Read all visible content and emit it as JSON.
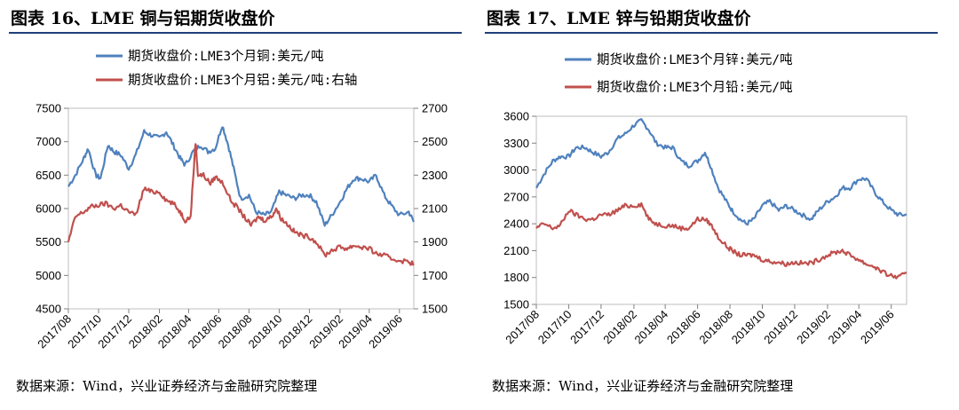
{
  "sources": {
    "left": "数据来源：Wind，兴业证券经济与金融研究院整理",
    "right": "数据来源：Wind，兴业证券经济与金融研究院整理"
  },
  "chart_data": [
    {
      "type": "line",
      "title": "图表 16、LME 铜与铝期货收盘价",
      "x_ticks": [
        "2017/08",
        "2017/10",
        "2017/12",
        "2018/02",
        "2018/04",
        "2018/06",
        "2018/08",
        "2018/10",
        "2018/12",
        "2019/02",
        "2019/04",
        "2019/06"
      ],
      "x_range": [
        "2017-08-01",
        "2019-06-30"
      ],
      "y_ticks_left": [
        4500,
        5000,
        5500,
        6000,
        6500,
        7000,
        7500
      ],
      "y_ticks_right": [
        1500,
        1700,
        1900,
        2100,
        2300,
        2500,
        2700
      ],
      "ylim_left": [
        4500,
        7500
      ],
      "ylim_right": [
        1500,
        2700
      ],
      "legend_placement": "top",
      "grid": false,
      "series": [
        {
          "name": "期货收盘价:LME3个月铜:美元/吨",
          "axis": "left",
          "color": "#4f81bd",
          "points": [
            [
              "2017-08-01",
              6330
            ],
            [
              "2017-08-15",
              6500
            ],
            [
              "2017-09-01",
              6750
            ],
            [
              "2017-09-10",
              6900
            ],
            [
              "2017-09-25",
              6500
            ],
            [
              "2017-10-05",
              6450
            ],
            [
              "2017-10-20",
              6950
            ],
            [
              "2017-11-01",
              6850
            ],
            [
              "2017-11-15",
              6800
            ],
            [
              "2017-12-01",
              6600
            ],
            [
              "2017-12-15",
              6800
            ],
            [
              "2018-01-01",
              7150
            ],
            [
              "2018-01-15",
              7100
            ],
            [
              "2018-02-01",
              7050
            ],
            [
              "2018-02-15",
              7150
            ],
            [
              "2018-03-01",
              6950
            ],
            [
              "2018-03-15",
              6750
            ],
            [
              "2018-03-25",
              6650
            ],
            [
              "2018-04-10",
              6850
            ],
            [
              "2018-04-25",
              6950
            ],
            [
              "2018-05-10",
              6850
            ],
            [
              "2018-05-25",
              6900
            ],
            [
              "2018-06-08",
              7250
            ],
            [
              "2018-06-20",
              6950
            ],
            [
              "2018-07-01",
              6600
            ],
            [
              "2018-07-15",
              6150
            ],
            [
              "2018-08-01",
              6200
            ],
            [
              "2018-08-15",
              5950
            ],
            [
              "2018-09-01",
              5900
            ],
            [
              "2018-09-15",
              5950
            ],
            [
              "2018-10-01",
              6250
            ],
            [
              "2018-10-15",
              6200
            ],
            [
              "2018-11-01",
              6150
            ],
            [
              "2018-11-15",
              6200
            ],
            [
              "2018-12-01",
              6200
            ],
            [
              "2018-12-15",
              6100
            ],
            [
              "2019-01-01",
              5750
            ],
            [
              "2019-01-15",
              5900
            ],
            [
              "2019-02-01",
              6100
            ],
            [
              "2019-02-15",
              6300
            ],
            [
              "2019-03-01",
              6450
            ],
            [
              "2019-03-15",
              6450
            ],
            [
              "2019-04-01",
              6400
            ],
            [
              "2019-04-15",
              6500
            ],
            [
              "2019-05-01",
              6200
            ],
            [
              "2019-05-15",
              6050
            ],
            [
              "2019-06-01",
              5900
            ],
            [
              "2019-06-20",
              5950
            ],
            [
              "2019-06-30",
              5800
            ]
          ]
        },
        {
          "name": "期货收盘价:LME3个月铝:美元/吨:右轴",
          "axis": "right",
          "color": "#c0504d",
          "points": [
            [
              "2017-08-01",
              1900
            ],
            [
              "2017-08-15",
              2050
            ],
            [
              "2017-09-01",
              2080
            ],
            [
              "2017-09-15",
              2110
            ],
            [
              "2017-10-01",
              2120
            ],
            [
              "2017-10-15",
              2130
            ],
            [
              "2017-11-01",
              2100
            ],
            [
              "2017-11-15",
              2120
            ],
            [
              "2017-12-01",
              2080
            ],
            [
              "2017-12-15",
              2060
            ],
            [
              "2018-01-01",
              2220
            ],
            [
              "2018-01-15",
              2200
            ],
            [
              "2018-02-01",
              2200
            ],
            [
              "2018-02-15",
              2150
            ],
            [
              "2018-03-01",
              2130
            ],
            [
              "2018-03-15",
              2080
            ],
            [
              "2018-03-25",
              2030
            ],
            [
              "2018-04-05",
              2050
            ],
            [
              "2018-04-15",
              2500
            ],
            [
              "2018-04-20",
              2300
            ],
            [
              "2018-05-01",
              2300
            ],
            [
              "2018-05-15",
              2250
            ],
            [
              "2018-05-25",
              2290
            ],
            [
              "2018-06-10",
              2250
            ],
            [
              "2018-06-25",
              2150
            ],
            [
              "2018-07-10",
              2100
            ],
            [
              "2018-07-25",
              2040
            ],
            [
              "2018-08-05",
              2000
            ],
            [
              "2018-08-20",
              2050
            ],
            [
              "2018-09-01",
              2030
            ],
            [
              "2018-09-15",
              2050
            ],
            [
              "2018-09-25",
              2100
            ],
            [
              "2018-10-05",
              2040
            ],
            [
              "2018-10-20",
              2000
            ],
            [
              "2018-11-01",
              1960
            ],
            [
              "2018-11-15",
              1940
            ],
            [
              "2018-12-01",
              1930
            ],
            [
              "2018-12-15",
              1900
            ],
            [
              "2019-01-01",
              1820
            ],
            [
              "2019-01-15",
              1850
            ],
            [
              "2019-02-01",
              1870
            ],
            [
              "2019-02-15",
              1860
            ],
            [
              "2019-03-01",
              1880
            ],
            [
              "2019-03-15",
              1870
            ],
            [
              "2019-04-01",
              1860
            ],
            [
              "2019-04-15",
              1830
            ],
            [
              "2019-05-01",
              1820
            ],
            [
              "2019-05-15",
              1800
            ],
            [
              "2019-06-01",
              1790
            ],
            [
              "2019-06-20",
              1780
            ],
            [
              "2019-06-30",
              1770
            ]
          ]
        }
      ]
    },
    {
      "type": "line",
      "title": "图表 17、LME 锌与铅期货收盘价",
      "x_ticks": [
        "2017/08",
        "2017/10",
        "2017/12",
        "2018/02",
        "2018/04",
        "2018/06",
        "2018/08",
        "2018/10",
        "2018/12",
        "2019/02",
        "2019/04",
        "2019/06"
      ],
      "x_range": [
        "2017-08-01",
        "2019-06-30"
      ],
      "y_ticks_left": [
        1500,
        1800,
        2100,
        2400,
        2700,
        3000,
        3300,
        3600
      ],
      "ylim_left": [
        1500,
        3600
      ],
      "legend_placement": "top",
      "grid": false,
      "series": [
        {
          "name": "期货收盘价:LME3个月锌:美元/吨",
          "axis": "left",
          "color": "#4f81bd",
          "points": [
            [
              "2017-08-01",
              2800
            ],
            [
              "2017-08-15",
              2950
            ],
            [
              "2017-09-01",
              3100
            ],
            [
              "2017-09-15",
              3150
            ],
            [
              "2017-10-01",
              3150
            ],
            [
              "2017-10-15",
              3250
            ],
            [
              "2017-11-01",
              3250
            ],
            [
              "2017-11-15",
              3200
            ],
            [
              "2017-12-01",
              3150
            ],
            [
              "2017-12-15",
              3200
            ],
            [
              "2018-01-01",
              3350
            ],
            [
              "2018-01-15",
              3400
            ],
            [
              "2018-02-01",
              3500
            ],
            [
              "2018-02-15",
              3550
            ],
            [
              "2018-03-01",
              3450
            ],
            [
              "2018-03-15",
              3300
            ],
            [
              "2018-04-01",
              3250
            ],
            [
              "2018-04-15",
              3250
            ],
            [
              "2018-05-01",
              3100
            ],
            [
              "2018-05-15",
              3050
            ],
            [
              "2018-06-01",
              3100
            ],
            [
              "2018-06-15",
              3200
            ],
            [
              "2018-06-25",
              3050
            ],
            [
              "2018-07-10",
              2800
            ],
            [
              "2018-07-25",
              2650
            ],
            [
              "2018-08-05",
              2550
            ],
            [
              "2018-08-20",
              2450
            ],
            [
              "2018-09-01",
              2400
            ],
            [
              "2018-09-15",
              2450
            ],
            [
              "2018-10-01",
              2600
            ],
            [
              "2018-10-15",
              2650
            ],
            [
              "2018-11-01",
              2550
            ],
            [
              "2018-11-15",
              2600
            ],
            [
              "2018-12-01",
              2550
            ],
            [
              "2018-12-15",
              2500
            ],
            [
              "2019-01-01",
              2450
            ],
            [
              "2019-01-15",
              2550
            ],
            [
              "2019-02-01",
              2650
            ],
            [
              "2019-02-15",
              2700
            ],
            [
              "2019-03-01",
              2800
            ],
            [
              "2019-03-15",
              2800
            ],
            [
              "2019-04-01",
              2900
            ],
            [
              "2019-04-15",
              2900
            ],
            [
              "2019-05-01",
              2750
            ],
            [
              "2019-05-15",
              2650
            ],
            [
              "2019-06-01",
              2550
            ],
            [
              "2019-06-15",
              2500
            ],
            [
              "2019-06-30",
              2500
            ]
          ]
        },
        {
          "name": "期货收盘价:LME3个月铅:美元/吨",
          "axis": "left",
          "color": "#c0504d",
          "points": [
            [
              "2017-08-01",
              2350
            ],
            [
              "2017-08-15",
              2400
            ],
            [
              "2017-09-01",
              2350
            ],
            [
              "2017-09-15",
              2380
            ],
            [
              "2017-10-01",
              2550
            ],
            [
              "2017-10-15",
              2500
            ],
            [
              "2017-11-01",
              2450
            ],
            [
              "2017-11-15",
              2450
            ],
            [
              "2017-12-01",
              2500
            ],
            [
              "2017-12-15",
              2500
            ],
            [
              "2018-01-01",
              2550
            ],
            [
              "2018-01-15",
              2600
            ],
            [
              "2018-02-01",
              2600
            ],
            [
              "2018-02-15",
              2620
            ],
            [
              "2018-03-01",
              2450
            ],
            [
              "2018-03-15",
              2400
            ],
            [
              "2018-04-01",
              2380
            ],
            [
              "2018-04-15",
              2380
            ],
            [
              "2018-05-01",
              2350
            ],
            [
              "2018-05-15",
              2350
            ],
            [
              "2018-06-01",
              2450
            ],
            [
              "2018-06-15",
              2450
            ],
            [
              "2018-06-25",
              2400
            ],
            [
              "2018-07-10",
              2250
            ],
            [
              "2018-07-25",
              2150
            ],
            [
              "2018-08-05",
              2100
            ],
            [
              "2018-08-20",
              2050
            ],
            [
              "2018-09-01",
              2050
            ],
            [
              "2018-09-15",
              2050
            ],
            [
              "2018-10-01",
              2000
            ],
            [
              "2018-10-15",
              1980
            ],
            [
              "2018-11-01",
              1970
            ],
            [
              "2018-11-15",
              1950
            ],
            [
              "2018-12-01",
              1970
            ],
            [
              "2018-12-15",
              1960
            ],
            [
              "2019-01-01",
              1960
            ],
            [
              "2019-01-15",
              2000
            ],
            [
              "2019-02-01",
              2050
            ],
            [
              "2019-02-15",
              2080
            ],
            [
              "2019-03-01",
              2100
            ],
            [
              "2019-03-15",
              2050
            ],
            [
              "2019-04-01",
              2000
            ],
            [
              "2019-04-15",
              1950
            ],
            [
              "2019-05-01",
              1920
            ],
            [
              "2019-05-15",
              1860
            ],
            [
              "2019-06-01",
              1820
            ],
            [
              "2019-06-15",
              1800
            ],
            [
              "2019-06-30",
              1850
            ]
          ]
        }
      ]
    }
  ]
}
